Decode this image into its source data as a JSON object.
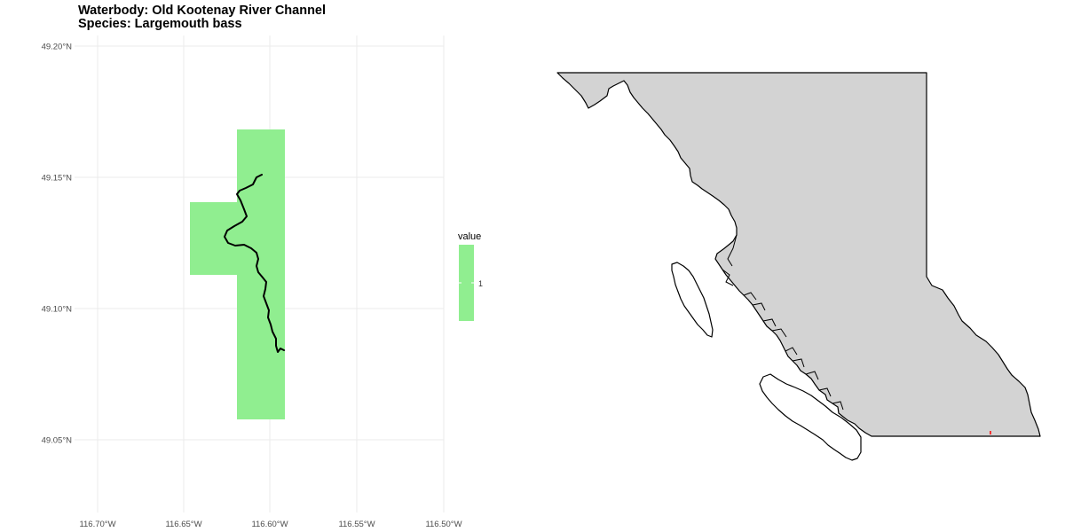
{
  "title": {
    "waterbody": "Waterbody: Old Kootenay River Channel",
    "species": "Species: Largemouth bass"
  },
  "detail_map": {
    "x_ticks": [
      "116.70°W",
      "116.65°W",
      "116.60°W",
      "116.55°W",
      "116.50°W"
    ],
    "y_ticks": [
      "49.20°N",
      "49.15°N",
      "49.10°N",
      "49.05°N"
    ],
    "extent": {
      "lon": [
        -116.7,
        -116.5
      ],
      "lat": [
        49.05,
        49.2
      ]
    },
    "grid": true,
    "raster_color": "#90EE90",
    "river_color": "#000000"
  },
  "legend": {
    "title": "value",
    "label": "1",
    "color": "#90EE90"
  },
  "overview_map": {
    "region": "British Columbia",
    "fill_color": "#D3D3D3",
    "outline_color": "#000000",
    "marker_color": "#FF0000"
  }
}
